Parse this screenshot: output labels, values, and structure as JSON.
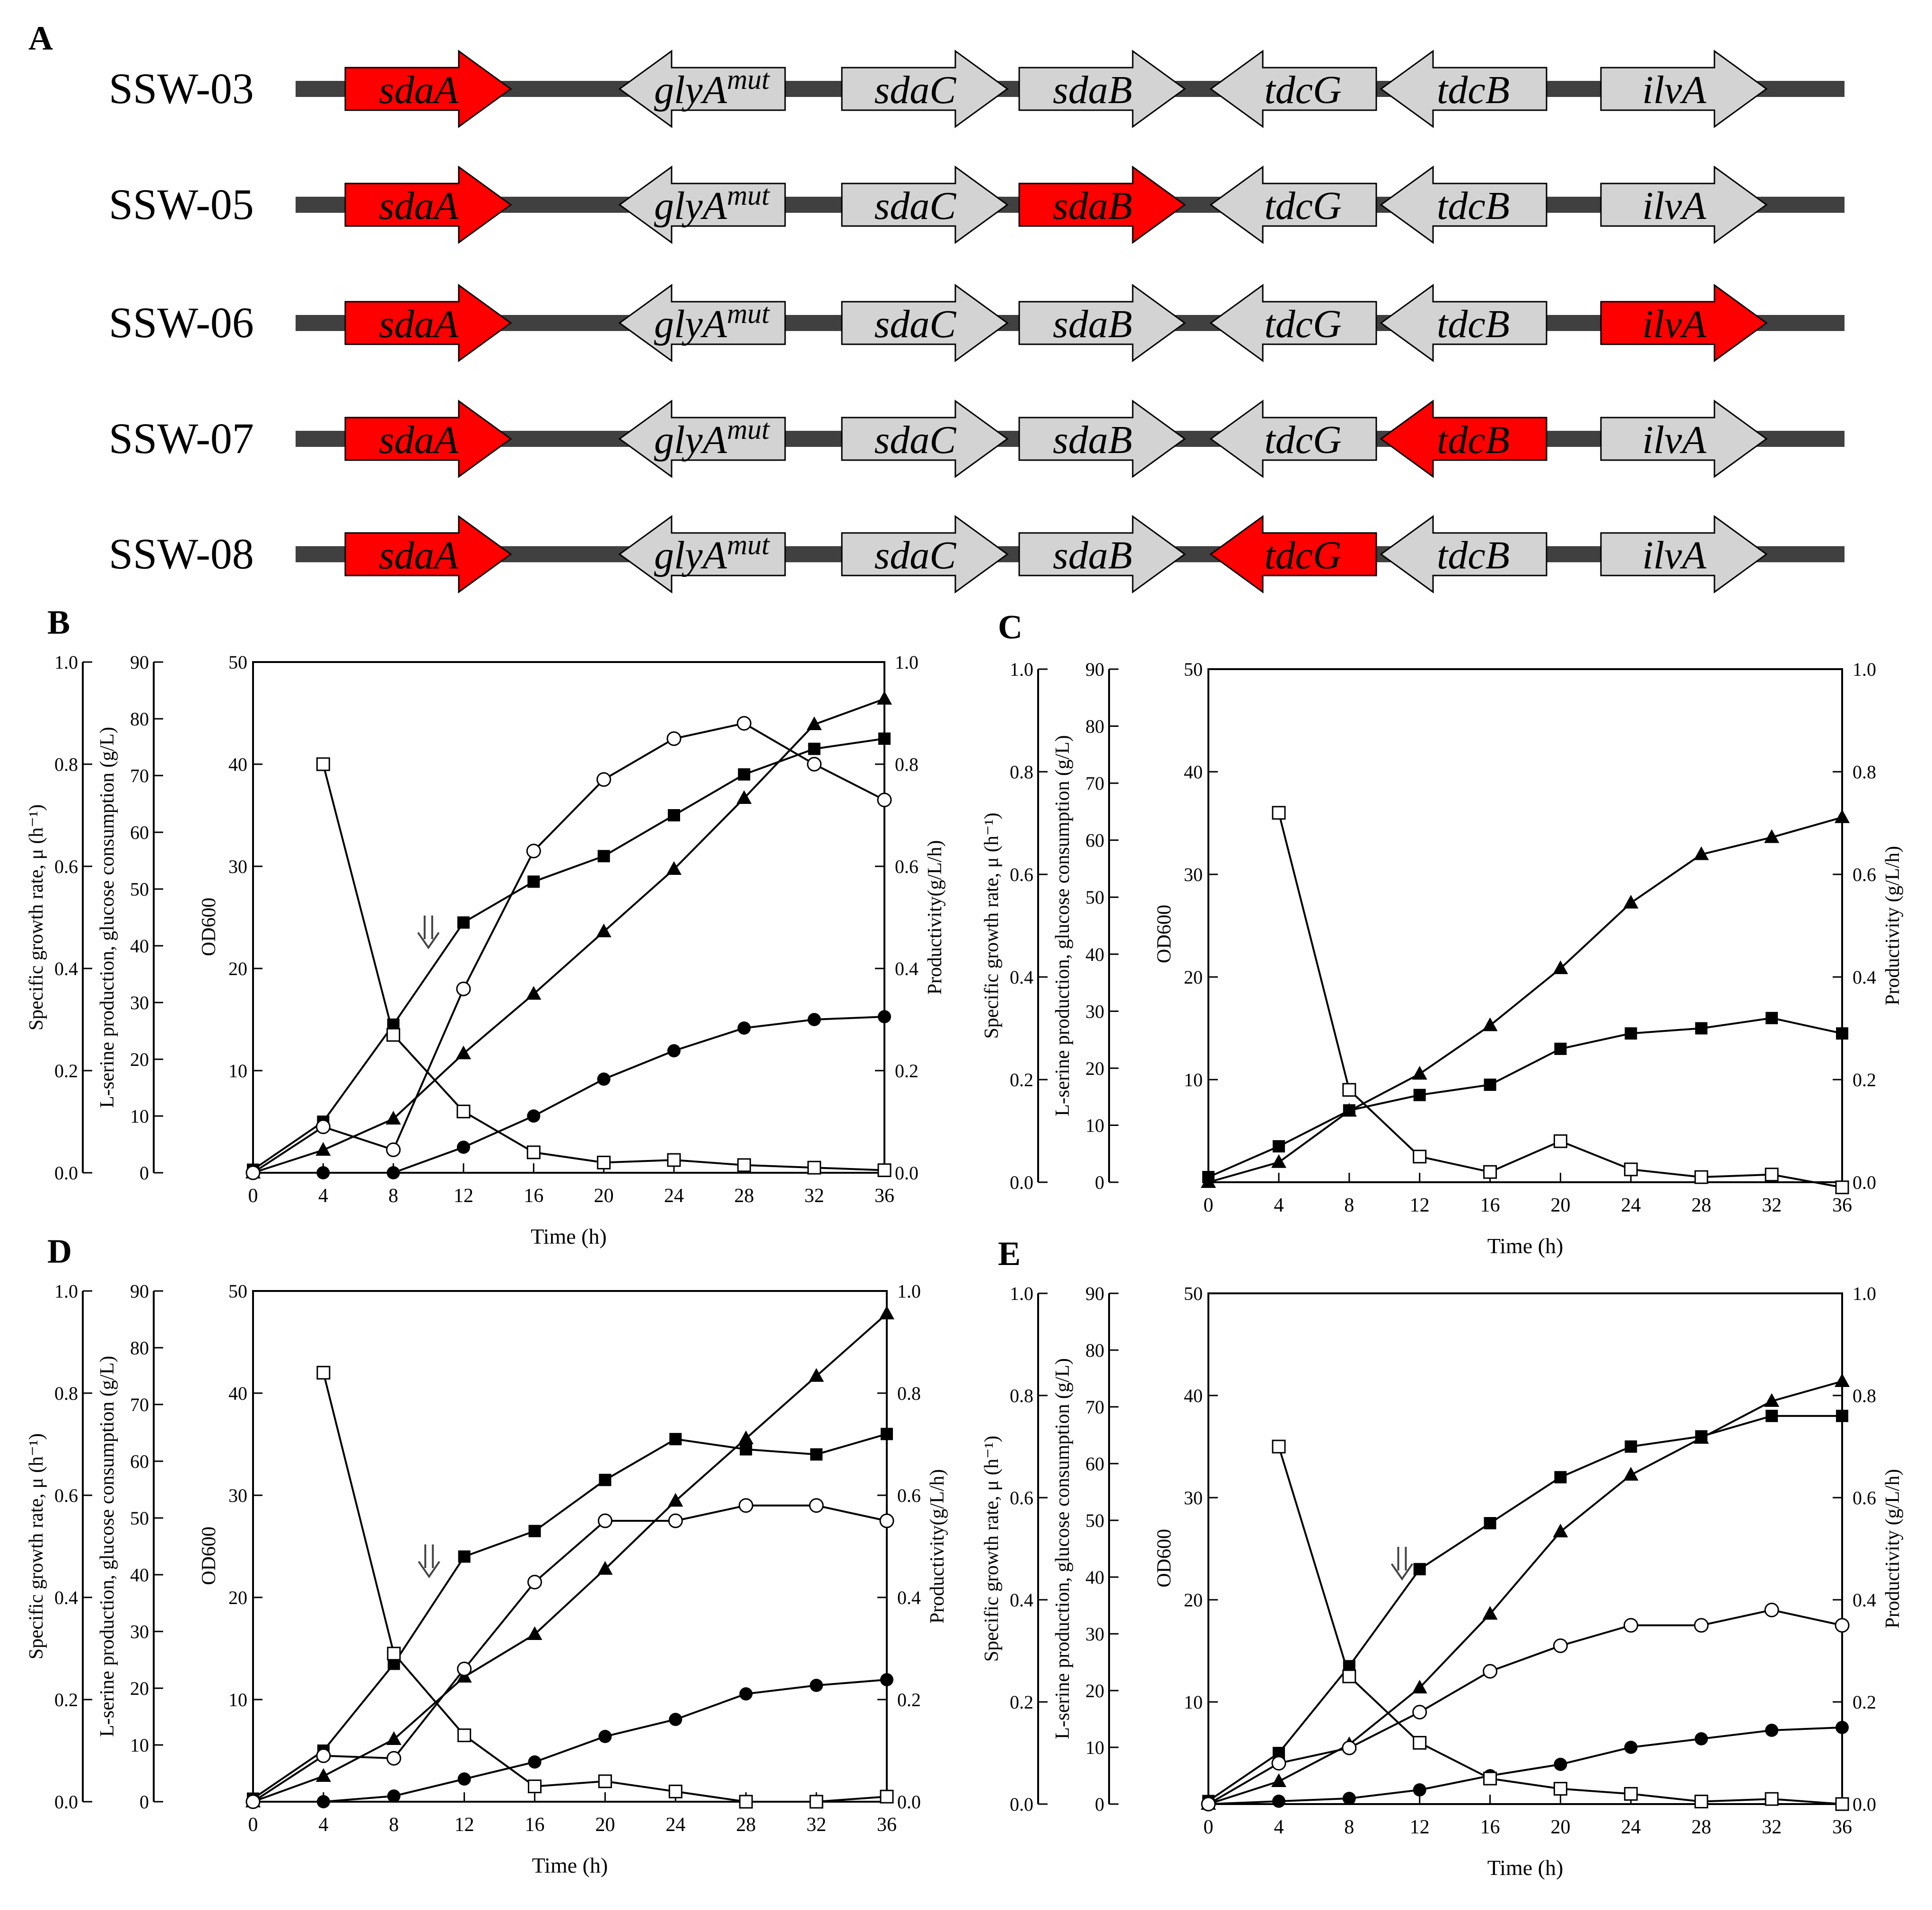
{
  "panel_a": {
    "label": "A",
    "colors": {
      "highlight": "#ff0000",
      "normal": "#d3d3d3",
      "line": "#404040"
    },
    "genes": [
      {
        "name": "sdaA",
        "sup": "",
        "dir": "right"
      },
      {
        "name": "glyA",
        "sup": "mut",
        "dir": "left"
      },
      {
        "name": "sdaC",
        "sup": "",
        "dir": "right"
      },
      {
        "name": "sdaB",
        "sup": "",
        "dir": "right"
      },
      {
        "name": "tdcG",
        "sup": "",
        "dir": "left"
      },
      {
        "name": "tdcB",
        "sup": "",
        "dir": "left"
      },
      {
        "name": "ilvA",
        "sup": "",
        "dir": "right"
      }
    ],
    "strains": [
      {
        "name": "SSW-03",
        "highlight": [
          "sdaA"
        ]
      },
      {
        "name": "SSW-05",
        "highlight": [
          "sdaA",
          "sdaB"
        ]
      },
      {
        "name": "SSW-06",
        "highlight": [
          "sdaA",
          "ilvA"
        ]
      },
      {
        "name": "SSW-07",
        "highlight": [
          "sdaA",
          "tdcB"
        ]
      },
      {
        "name": "SSW-08",
        "highlight": [
          "sdaA",
          "tdcG"
        ]
      }
    ]
  },
  "chart_data": [
    {
      "panel": "B",
      "type": "line",
      "xlabel": "Time (h)",
      "ylabel_outer": "Specific growth rate, μ (h⁻¹)",
      "ylabel_middle": "L-serine production, glucose consumption (g/L)",
      "ylabel_inner": "OD600",
      "ylabel_right": "Productivity(g/L/h)",
      "x": [
        0,
        4,
        8,
        12,
        16,
        20,
        24,
        28,
        32,
        36
      ],
      "axes": {
        "mu": [
          0,
          1.0
        ],
        "gL": [
          0,
          90
        ],
        "od": [
          0,
          50
        ],
        "prod": [
          0,
          1.0
        ]
      },
      "ticks": {
        "mu": [
          "0.0",
          "0.2",
          "0.4",
          "0.6",
          "0.8",
          "1.0"
        ],
        "gL": [
          "0",
          "10",
          "20",
          "30",
          "40",
          "50",
          "60",
          "70",
          "80",
          "90"
        ],
        "od": [
          "10",
          "20",
          "30",
          "40",
          "50"
        ],
        "prod": [
          "0.0",
          "0.2",
          "0.4",
          "0.6",
          "0.8",
          "1.0"
        ],
        "x": [
          "0",
          "4",
          "8",
          "12",
          "16",
          "20",
          "24",
          "28",
          "32",
          "36"
        ]
      },
      "arrow_x": 10,
      "series": [
        {
          "name": "OD600",
          "marker": "filled-square",
          "axis": "od",
          "values": [
            0.3,
            5.0,
            14.5,
            24.5,
            28.5,
            31.0,
            35.0,
            39.0,
            41.5,
            42.5
          ]
        },
        {
          "name": "L-serine",
          "marker": "filled-circle",
          "axis": "gL",
          "values": [
            0,
            0,
            0,
            4.5,
            10,
            16.5,
            21.5,
            25.5,
            27,
            27.5
          ]
        },
        {
          "name": "Glucose consumption",
          "marker": "filled-triangle",
          "axis": "gL",
          "values": [
            0,
            4,
            9.5,
            21,
            31.5,
            42.5,
            53.5,
            66,
            79,
            83.5
          ]
        },
        {
          "name": "Productivity",
          "marker": "open-circle",
          "axis": "prod",
          "values": [
            0,
            0.09,
            0.045,
            0.36,
            0.63,
            0.77,
            0.85,
            0.88,
            0.8,
            0.73
          ]
        },
        {
          "name": "Specific growth rate",
          "marker": "open-square",
          "axis": "mu",
          "values": [
            null,
            0.8,
            0.27,
            0.12,
            0.04,
            0.02,
            0.025,
            0.015,
            0.01,
            0.005
          ]
        }
      ]
    },
    {
      "panel": "C",
      "type": "line",
      "xlabel": "Time (h)",
      "ylabel_outer": "Specific growth rate, μ (h⁻¹)",
      "ylabel_middle": "L-serine production, glucose consumption (g/L)",
      "ylabel_inner": "OD600",
      "ylabel_right": "Productivity (g/L/h)",
      "x": [
        0,
        4,
        8,
        12,
        16,
        20,
        24,
        28,
        32,
        36
      ],
      "axes": {
        "mu": [
          0,
          1.0
        ],
        "gL": [
          0,
          90
        ],
        "od": [
          0,
          50
        ],
        "prod": [
          0,
          1.0
        ]
      },
      "ticks": {
        "mu": [
          "0.0",
          "0.2",
          "0.4",
          "0.6",
          "0.8",
          "1.0"
        ],
        "gL": [
          "0",
          "10",
          "20",
          "30",
          "40",
          "50",
          "60",
          "70",
          "80",
          "90"
        ],
        "od": [
          "10",
          "20",
          "30",
          "40",
          "50"
        ],
        "prod": [
          "0.0",
          "0.2",
          "0.4",
          "0.6",
          "0.8",
          "1.0"
        ],
        "x": [
          "0",
          "4",
          "8",
          "12",
          "16",
          "20",
          "24",
          "28",
          "32",
          "36"
        ]
      },
      "arrow_x": null,
      "series": [
        {
          "name": "OD600",
          "marker": "filled-square",
          "axis": "od",
          "values": [
            0.5,
            3.5,
            7.0,
            8.5,
            9.5,
            13.0,
            14.5,
            15.0,
            16.0,
            14.5
          ]
        },
        {
          "name": "Glucose consumption",
          "marker": "filled-triangle",
          "axis": "gL",
          "values": [
            0,
            3.5,
            12.5,
            19,
            27.5,
            37.5,
            49,
            57.5,
            60.5,
            64
          ]
        },
        {
          "name": "Specific growth rate",
          "marker": "open-square",
          "axis": "mu",
          "values": [
            null,
            0.72,
            0.18,
            0.05,
            0.02,
            0.08,
            0.025,
            0.01,
            0.015,
            -0.01
          ]
        }
      ]
    },
    {
      "panel": "D",
      "type": "line",
      "xlabel": "Time (h)",
      "ylabel_outer": "Specific growth rate, μ (h⁻¹)",
      "ylabel_middle": "L-serine production, glucose consumption (g/L)",
      "ylabel_inner": "OD600",
      "ylabel_right": "Productivity(g/L/h)",
      "x": [
        0,
        4,
        8,
        12,
        16,
        20,
        24,
        28,
        32,
        36
      ],
      "axes": {
        "mu": [
          0,
          1.0
        ],
        "gL": [
          0,
          90
        ],
        "od": [
          0,
          50
        ],
        "prod": [
          0,
          1.0
        ]
      },
      "ticks": {
        "mu": [
          "0.0",
          "0.2",
          "0.4",
          "0.6",
          "0.8",
          "1.0"
        ],
        "gL": [
          "0",
          "10",
          "20",
          "30",
          "40",
          "50",
          "60",
          "70",
          "80",
          "90"
        ],
        "od": [
          "10",
          "20",
          "30",
          "40",
          "50"
        ],
        "prod": [
          "0.0",
          "0.2",
          "0.4",
          "0.6",
          "0.8",
          "1.0"
        ],
        "x": [
          "0",
          "4",
          "8",
          "12",
          "16",
          "20",
          "24",
          "28",
          "32",
          "36"
        ]
      },
      "arrow_x": 10,
      "series": [
        {
          "name": "OD600",
          "marker": "filled-square",
          "axis": "od",
          "values": [
            0.3,
            5.0,
            13.5,
            24.0,
            26.5,
            31.5,
            35.5,
            34.5,
            34.0,
            36.0
          ]
        },
        {
          "name": "L-serine",
          "marker": "filled-circle",
          "axis": "gL",
          "values": [
            0,
            0,
            1,
            4,
            7,
            11.5,
            14.5,
            19,
            20.5,
            21.5
          ]
        },
        {
          "name": "Glucose consumption",
          "marker": "filled-triangle",
          "axis": "gL",
          "values": [
            0,
            4.5,
            11,
            22,
            29.5,
            41,
            53,
            64,
            75,
            86
          ]
        },
        {
          "name": "Productivity",
          "marker": "open-circle",
          "axis": "prod",
          "values": [
            0,
            0.09,
            0.085,
            0.26,
            0.43,
            0.55,
            0.55,
            0.58,
            0.58,
            0.55
          ]
        },
        {
          "name": "Specific growth rate",
          "marker": "open-square",
          "axis": "mu",
          "values": [
            null,
            0.84,
            0.29,
            0.13,
            0.03,
            0.04,
            0.02,
            0.0,
            0.0,
            0.01
          ]
        }
      ]
    },
    {
      "panel": "E",
      "type": "line",
      "xlabel": "Time (h)",
      "ylabel_outer": "Specific growth rate, μ (h⁻¹)",
      "ylabel_middle": "L-serine production, glucose consumption (g/L)",
      "ylabel_inner": "OD600",
      "ylabel_right": "Productivity (g/L/h)",
      "x": [
        0,
        4,
        8,
        12,
        16,
        20,
        24,
        28,
        32,
        36
      ],
      "axes": {
        "mu": [
          0,
          1.0
        ],
        "gL": [
          0,
          90
        ],
        "od": [
          0,
          50
        ],
        "prod": [
          0,
          1.0
        ]
      },
      "ticks": {
        "mu": [
          "0.0",
          "0.2",
          "0.4",
          "0.6",
          "0.8",
          "1.0"
        ],
        "gL": [
          "0",
          "10",
          "20",
          "30",
          "40",
          "50",
          "60",
          "70",
          "80",
          "90"
        ],
        "od": [
          "10",
          "20",
          "30",
          "40",
          "50"
        ],
        "prod": [
          "0.0",
          "0.2",
          "0.4",
          "0.6",
          "0.8",
          "1.0"
        ],
        "x": [
          "0",
          "4",
          "8",
          "12",
          "16",
          "20",
          "24",
          "28",
          "32",
          "36"
        ]
      },
      "arrow_x": 11,
      "series": [
        {
          "name": "OD600",
          "marker": "filled-square",
          "axis": "od",
          "values": [
            0.3,
            5.0,
            13.5,
            23.0,
            27.5,
            32.0,
            35.0,
            36.0,
            38.0,
            38.0
          ]
        },
        {
          "name": "L-serine",
          "marker": "filled-circle",
          "axis": "gL",
          "values": [
            0,
            0.5,
            1,
            2.5,
            5,
            7,
            10,
            11.5,
            13,
            13.5
          ]
        },
        {
          "name": "Glucose consumption",
          "marker": "filled-triangle",
          "axis": "gL",
          "values": [
            0,
            4,
            10.5,
            20.5,
            33.5,
            48,
            58,
            64.5,
            71,
            74.5
          ]
        },
        {
          "name": "Productivity",
          "marker": "open-circle",
          "axis": "prod",
          "values": [
            0,
            0.08,
            0.11,
            0.18,
            0.26,
            0.31,
            0.35,
            0.35,
            0.38,
            0.35
          ]
        },
        {
          "name": "Specific growth rate",
          "marker": "open-square",
          "axis": "mu",
          "values": [
            null,
            0.7,
            0.25,
            0.12,
            0.05,
            0.03,
            0.02,
            0.005,
            0.01,
            0.0
          ]
        }
      ]
    }
  ]
}
